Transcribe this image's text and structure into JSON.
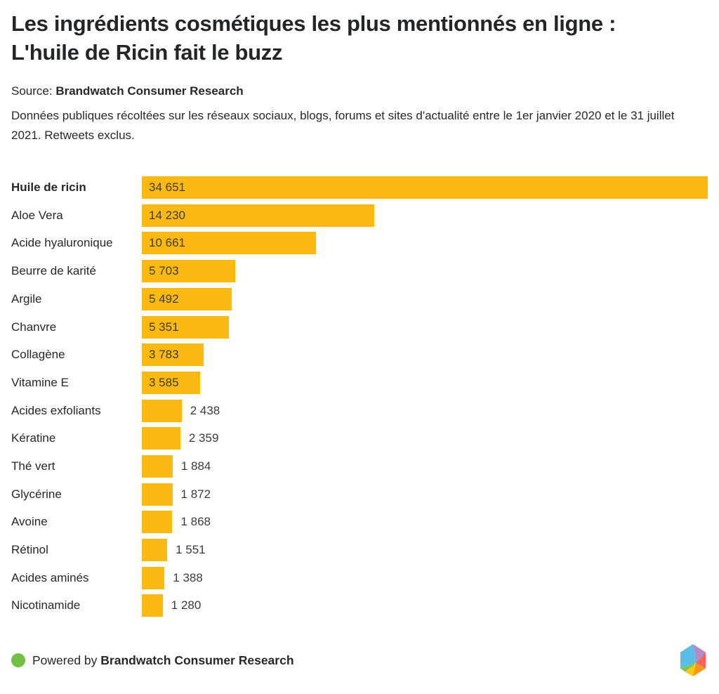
{
  "header": {
    "title": "Les ingrédients cosmétiques les plus mentionnés en ligne :\nL'huile de Ricin fait le buzz",
    "source_label": "Source:",
    "source_value": "Brandwatch Consumer Research",
    "description": "Données publiques récoltées sur les réseaux sociaux, blogs, forums et sites d'actualité entre le 1er janvier 2020 et le 31 juillet 2021. Retweets exclus."
  },
  "chart_data": {
    "type": "bar",
    "orientation": "horizontal",
    "categories": [
      "Huile de ricin",
      "Aloe Vera",
      "Acide hyaluronique",
      "Beurre de karité",
      "Argile",
      "Chanvre",
      "Collagène",
      "Vitamine E",
      "Acides exfoliants",
      "Kératine",
      "Thé vert",
      "Glycérine",
      "Avoine",
      "Rétinol",
      "Acides aminés",
      "Nicotinamide"
    ],
    "values": [
      34651,
      14230,
      10661,
      5703,
      5492,
      5351,
      3783,
      3585,
      2438,
      2359,
      1884,
      1872,
      1868,
      1551,
      1388,
      1280
    ],
    "value_labels": [
      "34 651",
      "14 230",
      "10 661",
      "5 703",
      "5 492",
      "5 351",
      "3 783",
      "3 585",
      "2 438",
      "2 359",
      "1 884",
      "1 872",
      "1 868",
      "1 551",
      "1 388",
      "1 280"
    ],
    "highlight_category": "Huile de ricin",
    "xlim": [
      0,
      34651
    ],
    "bar_color": "#FDB913",
    "value_label_color": "#3c3c3c",
    "inside_label_min_value": 3000,
    "grid": false,
    "legend": false
  },
  "footer": {
    "powered_by": "Powered by",
    "brand": "Brandwatch Consumer Research",
    "dot_color": "#72BF44",
    "logo_facets": [
      "#58BEE8",
      "#B18CC6",
      "#F9625E",
      "#F8971D",
      "#FDC70F",
      "#85C442"
    ]
  }
}
